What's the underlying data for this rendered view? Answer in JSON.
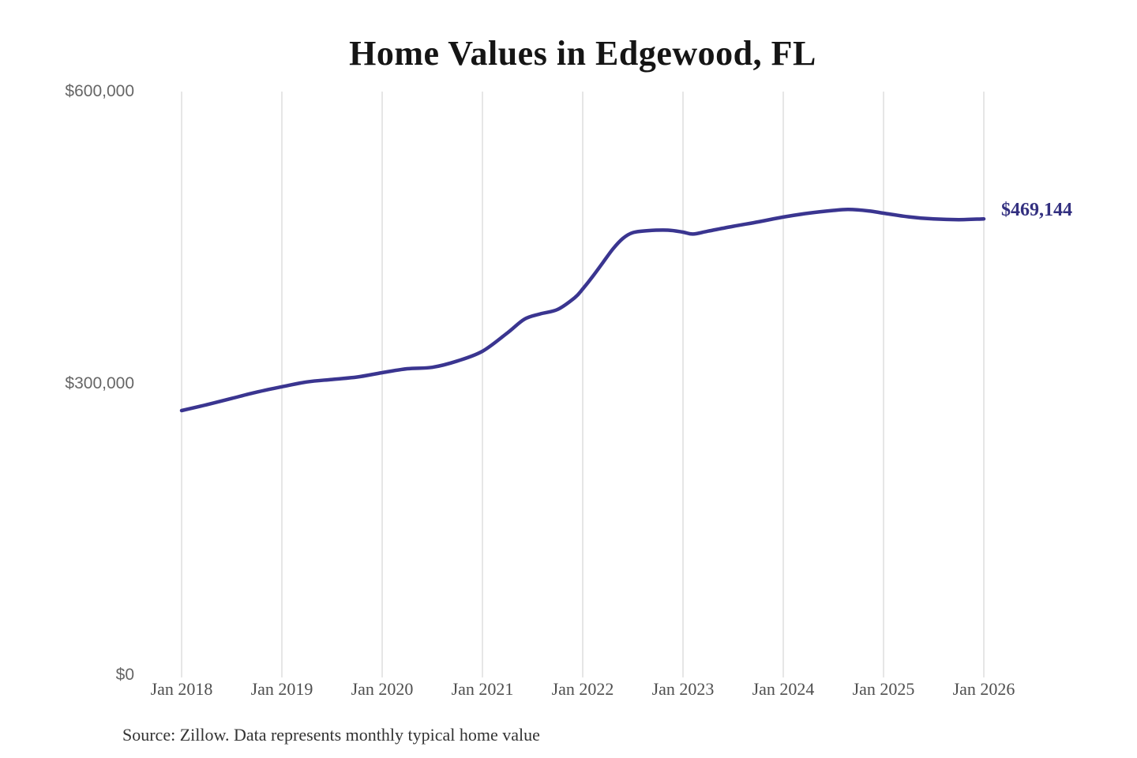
{
  "chart_data": {
    "type": "line",
    "title": "Home Values in Edgewood, FL",
    "source": "Source: Zillow. Data represents monthly typical home value",
    "end_label": "$469,144",
    "end_value": 469144,
    "grid": "vertical-only",
    "legend": "none",
    "xlim": [
      2018,
      2026
    ],
    "ylim": [
      0,
      600000
    ],
    "x_ticks": [
      {
        "year": 2018,
        "label": "Jan 2018"
      },
      {
        "year": 2019,
        "label": "Jan 2019"
      },
      {
        "year": 2020,
        "label": "Jan 2020"
      },
      {
        "year": 2021,
        "label": "Jan 2021"
      },
      {
        "year": 2022,
        "label": "Jan 2022"
      },
      {
        "year": 2023,
        "label": "Jan 2023"
      },
      {
        "year": 2024,
        "label": "Jan 2024"
      },
      {
        "year": 2025,
        "label": "Jan 2025"
      },
      {
        "year": 2026,
        "label": "Jan 2026"
      }
    ],
    "y_ticks": [
      {
        "value": 0,
        "label": "$0"
      },
      {
        "value": 300000,
        "label": "$300,000"
      },
      {
        "value": 600000,
        "label": "$600,000"
      }
    ],
    "colors": {
      "line": "#3a3590",
      "end_label": "#333080",
      "grid": "#cccccc",
      "y_text": "#666666",
      "x_text": "#4f4f4f",
      "title": "#151515"
    },
    "series": [
      {
        "name": "Monthly typical home value",
        "points": [
          [
            2018.0,
            272000
          ],
          [
            2018.25,
            278000
          ],
          [
            2018.5,
            284500
          ],
          [
            2018.75,
            291000
          ],
          [
            2019.0,
            296500
          ],
          [
            2019.25,
            301500
          ],
          [
            2019.5,
            304000
          ],
          [
            2019.75,
            306500
          ],
          [
            2020.0,
            311000
          ],
          [
            2020.25,
            315000
          ],
          [
            2020.5,
            316500
          ],
          [
            2020.75,
            323000
          ],
          [
            2021.0,
            333000
          ],
          [
            2021.25,
            352000
          ],
          [
            2021.42,
            366000
          ],
          [
            2021.58,
            371500
          ],
          [
            2021.75,
            376000
          ],
          [
            2021.92,
            388000
          ],
          [
            2022.0,
            397000
          ],
          [
            2022.1,
            410000
          ],
          [
            2022.2,
            424000
          ],
          [
            2022.3,
            438000
          ],
          [
            2022.4,
            449000
          ],
          [
            2022.5,
            455000
          ],
          [
            2022.65,
            457000
          ],
          [
            2022.85,
            457500
          ],
          [
            2023.0,
            455500
          ],
          [
            2023.1,
            453500
          ],
          [
            2023.25,
            456500
          ],
          [
            2023.5,
            461500
          ],
          [
            2023.75,
            466000
          ],
          [
            2024.0,
            471000
          ],
          [
            2024.25,
            475000
          ],
          [
            2024.5,
            477800
          ],
          [
            2024.65,
            478800
          ],
          [
            2024.85,
            477300
          ],
          [
            2025.0,
            475000
          ],
          [
            2025.25,
            471200
          ],
          [
            2025.5,
            469000
          ],
          [
            2025.75,
            468300
          ],
          [
            2026.0,
            469144
          ]
        ]
      }
    ]
  }
}
